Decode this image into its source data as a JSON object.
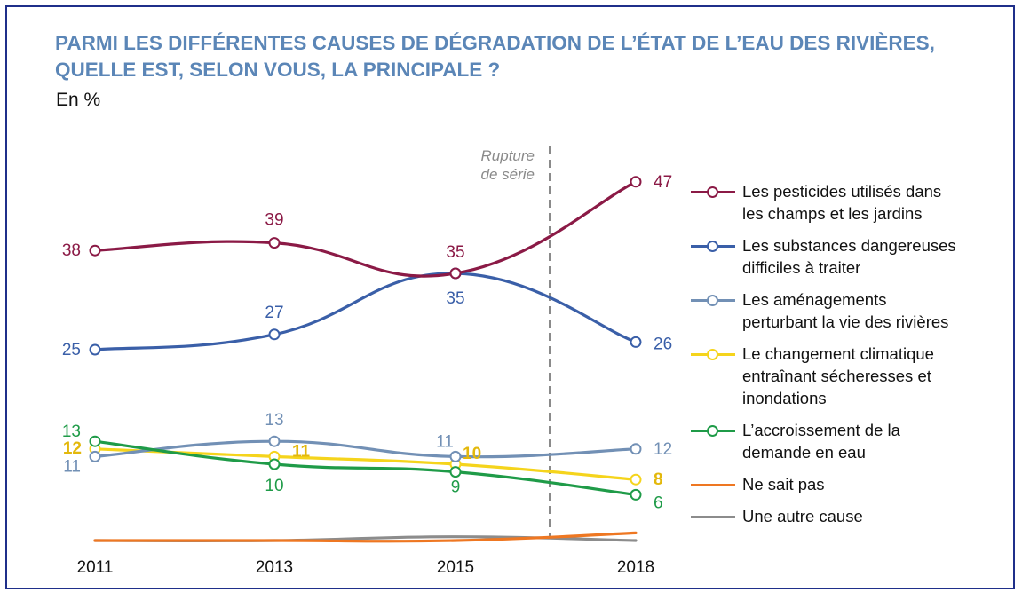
{
  "title": "PARMI LES DIFFÉRENTES CAUSES DE DÉGRADATION DE L’ÉTAT DE L’EAU DES RIVIÈRES, QUELLE EST, SELON VOUS, LA PRINCIPALE ?",
  "unit_label": "En %",
  "annotation": {
    "line1": "Rupture",
    "line2": "de série"
  },
  "chart_data": {
    "type": "line",
    "title": "PARMI LES DIFFÉRENTES CAUSES DE DÉGRADATION DE L’ÉTAT DE L’EAU DES RIVIÈRES, QUELLE EST, SELON VOUS, LA PRINCIPALE ?",
    "ylabel": "En %",
    "categories": [
      "2011",
      "2013",
      "2015",
      "2018"
    ],
    "break_between": [
      "2015",
      "2018"
    ],
    "ylim": [
      0,
      50
    ],
    "grid": false,
    "legend_position": "right",
    "series": [
      {
        "name": "Les pesticides utilisés dans les champs et les jardins",
        "legend": [
          "Les pesticides utilisés dans",
          "les champs et les jardins"
        ],
        "color": "#8b1a46",
        "values": [
          38,
          39,
          35,
          47
        ],
        "markers": true,
        "labels": [
          "38",
          "39",
          "35",
          "47"
        ]
      },
      {
        "name": "Les substances dangereuses difficiles à traiter",
        "legend": [
          "Les substances dangereuses",
          "difficiles à traiter"
        ],
        "color": "#3a5fa8",
        "values": [
          25,
          27,
          35,
          26
        ],
        "markers": true,
        "labels": [
          "25",
          "27",
          "35",
          "26"
        ]
      },
      {
        "name": "Les aménagements perturbant la vie des rivières",
        "legend": [
          "Les aménagements",
          "perturbant la vie des rivières"
        ],
        "color": "#7290b5",
        "values": [
          11,
          13,
          11,
          12
        ],
        "markers": true,
        "labels": [
          "11",
          "13",
          "11",
          "12"
        ]
      },
      {
        "name": "Le changement climatique entraînant sécheresses et inondations",
        "legend": [
          "Le changement climatique",
          "entraînant sécheresses et",
          "inondations"
        ],
        "color": "#f5d41c",
        "label_color": "#e3b80c",
        "values": [
          12,
          11,
          10,
          8
        ],
        "markers": true,
        "labels": [
          "12",
          "11",
          "10",
          "8"
        ]
      },
      {
        "name": "L’accroissement de la demande en eau",
        "legend": [
          "L’accroissement de la",
          "demande en eau"
        ],
        "color": "#1f9b48",
        "values": [
          13,
          10,
          9,
          6
        ],
        "markers": true,
        "labels": [
          "13",
          "10",
          "9",
          "6"
        ]
      },
      {
        "name": "Ne sait pas",
        "legend": [
          "Ne sait pas"
        ],
        "color": "#ee7722",
        "values": [
          0,
          0,
          0,
          1
        ],
        "markers": false,
        "labels": []
      },
      {
        "name": "Une autre cause",
        "legend": [
          "Une autre cause"
        ],
        "color": "#8c8c8c",
        "values": [
          0,
          0,
          0.5,
          0
        ],
        "markers": false,
        "labels": []
      }
    ]
  }
}
